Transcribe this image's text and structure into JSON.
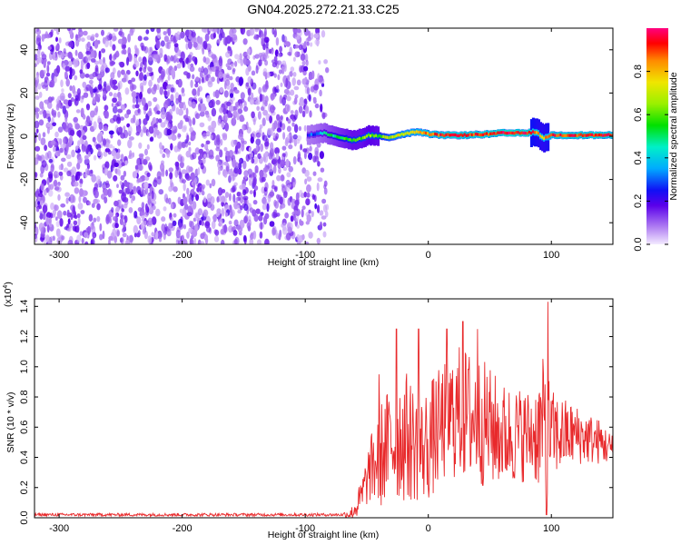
{
  "title": "GN04.2025.272.21.33.C25",
  "chart_data": [
    {
      "type": "heatmap",
      "name": "spectrogram",
      "xlabel": "Height of straight line (km)",
      "ylabel": "Frequency (Hz)",
      "xlim": [
        -320,
        150
      ],
      "ylim": [
        -50,
        50
      ],
      "x_ticks": [
        -300,
        -200,
        -100,
        0,
        100
      ],
      "y_ticks": [
        -40,
        -20,
        0,
        20,
        40
      ],
      "noise_region": {
        "x": [
          -320,
          -82
        ],
        "y": [
          -50,
          50
        ],
        "level": "0.0-0.15"
      },
      "signal_track": [
        {
          "x": -98,
          "y": 0.5,
          "amp": 0.3
        },
        {
          "x": -90,
          "y": 1.0,
          "amp": 0.35
        },
        {
          "x": -85,
          "y": 1.5,
          "amp": 0.4
        },
        {
          "x": -75,
          "y": 0.0,
          "amp": 0.5
        },
        {
          "x": -68,
          "y": -1.0,
          "amp": 0.55
        },
        {
          "x": -62,
          "y": -2.0,
          "amp": 0.6
        },
        {
          "x": -55,
          "y": -1.0,
          "amp": 0.6
        },
        {
          "x": -48,
          "y": 0.5,
          "amp": 0.65
        },
        {
          "x": -40,
          "y": 0.0,
          "amp": 0.6
        },
        {
          "x": -30,
          "y": -0.5,
          "amp": 0.7
        },
        {
          "x": -20,
          "y": 1.0,
          "amp": 0.75
        },
        {
          "x": -10,
          "y": 2.0,
          "amp": 0.8
        },
        {
          "x": 0,
          "y": 1.0,
          "amp": 0.85
        },
        {
          "x": 10,
          "y": 0.5,
          "amp": 0.9
        },
        {
          "x": 20,
          "y": 0.5,
          "amp": 0.9
        },
        {
          "x": 30,
          "y": 0.5,
          "amp": 0.92
        },
        {
          "x": 40,
          "y": 0.8,
          "amp": 0.9
        },
        {
          "x": 50,
          "y": 1.0,
          "amp": 0.92
        },
        {
          "x": 60,
          "y": 1.5,
          "amp": 0.95
        },
        {
          "x": 70,
          "y": 1.5,
          "amp": 0.95
        },
        {
          "x": 80,
          "y": 1.5,
          "amp": 0.95
        },
        {
          "x": 88,
          "y": 2.0,
          "amp": 0.85
        },
        {
          "x": 93,
          "y": -1.0,
          "amp": 0.8
        },
        {
          "x": 100,
          "y": 0.5,
          "amp": 0.9
        },
        {
          "x": 110,
          "y": 0.5,
          "amp": 0.9
        },
        {
          "x": 120,
          "y": 0.5,
          "amp": 0.92
        },
        {
          "x": 130,
          "y": 0.5,
          "amp": 0.92
        },
        {
          "x": 140,
          "y": 0.5,
          "amp": 0.92
        },
        {
          "x": 150,
          "y": 0.5,
          "amp": 0.92
        }
      ],
      "colorbar": {
        "label": "Normalized spectral amplitude",
        "range": [
          0,
          1
        ],
        "ticks": [
          "0.0",
          "0.2",
          "0.4",
          "0.6",
          "0.8"
        ],
        "tick_values": [
          0.0,
          0.2,
          0.4,
          0.6,
          0.8
        ]
      }
    },
    {
      "type": "line",
      "name": "snr",
      "xlabel": "Height of straight line (km)",
      "ylabel": "SNR (10 * v/v)",
      "exponent_label": "(x10",
      "exponent_power": "4",
      "exponent_close": ")",
      "xlim": [
        -320,
        150
      ],
      "ylim": [
        0,
        1.45
      ],
      "x_ticks": [
        -300,
        -200,
        -100,
        0,
        100
      ],
      "y_ticks": [
        "0.0",
        "0.2",
        "0.4",
        "0.6",
        "0.8",
        "1.0",
        "1.2",
        "1.4"
      ],
      "y_tick_values": [
        0.0,
        0.2,
        0.4,
        0.6,
        0.8,
        1.0,
        1.2,
        1.4
      ],
      "color": "#e8292b",
      "envelope": [
        {
          "x": -320,
          "base": 0.02,
          "amp": 0.01
        },
        {
          "x": -70,
          "base": 0.02,
          "amp": 0.01
        },
        {
          "x": -62,
          "base": 0.03,
          "amp": 0.05
        },
        {
          "x": -55,
          "base": 0.12,
          "amp": 0.12
        },
        {
          "x": -48,
          "base": 0.3,
          "amp": 0.2
        },
        {
          "x": -40,
          "base": 0.4,
          "amp": 0.35
        },
        {
          "x": -30,
          "base": 0.5,
          "amp": 0.4
        },
        {
          "x": -20,
          "base": 0.55,
          "amp": 0.45
        },
        {
          "x": -5,
          "base": 0.45,
          "amp": 0.35
        },
        {
          "x": 0,
          "base": 0.5,
          "amp": 0.4
        },
        {
          "x": 15,
          "base": 0.65,
          "amp": 0.4
        },
        {
          "x": 25,
          "base": 0.7,
          "amp": 0.45
        },
        {
          "x": 40,
          "base": 0.65,
          "amp": 0.45
        },
        {
          "x": 60,
          "base": 0.55,
          "amp": 0.35
        },
        {
          "x": 85,
          "base": 0.55,
          "amp": 0.3
        },
        {
          "x": 95,
          "base": 0.6,
          "amp": 0.5
        },
        {
          "x": 100,
          "base": 0.55,
          "amp": 0.3
        },
        {
          "x": 120,
          "base": 0.55,
          "amp": 0.2
        },
        {
          "x": 140,
          "base": 0.5,
          "amp": 0.15
        },
        {
          "x": 150,
          "base": 0.45,
          "amp": 0.1
        }
      ],
      "peaks": [
        {
          "x": -40,
          "y": 0.95
        },
        {
          "x": -26,
          "y": 1.25
        },
        {
          "x": -8,
          "y": 1.25
        },
        {
          "x": 15,
          "y": 1.25
        },
        {
          "x": 28,
          "y": 1.3
        },
        {
          "x": 40,
          "y": 1.25
        },
        {
          "x": 97,
          "y": 1.43
        },
        {
          "x": 96,
          "y": 0.02
        }
      ]
    }
  ]
}
